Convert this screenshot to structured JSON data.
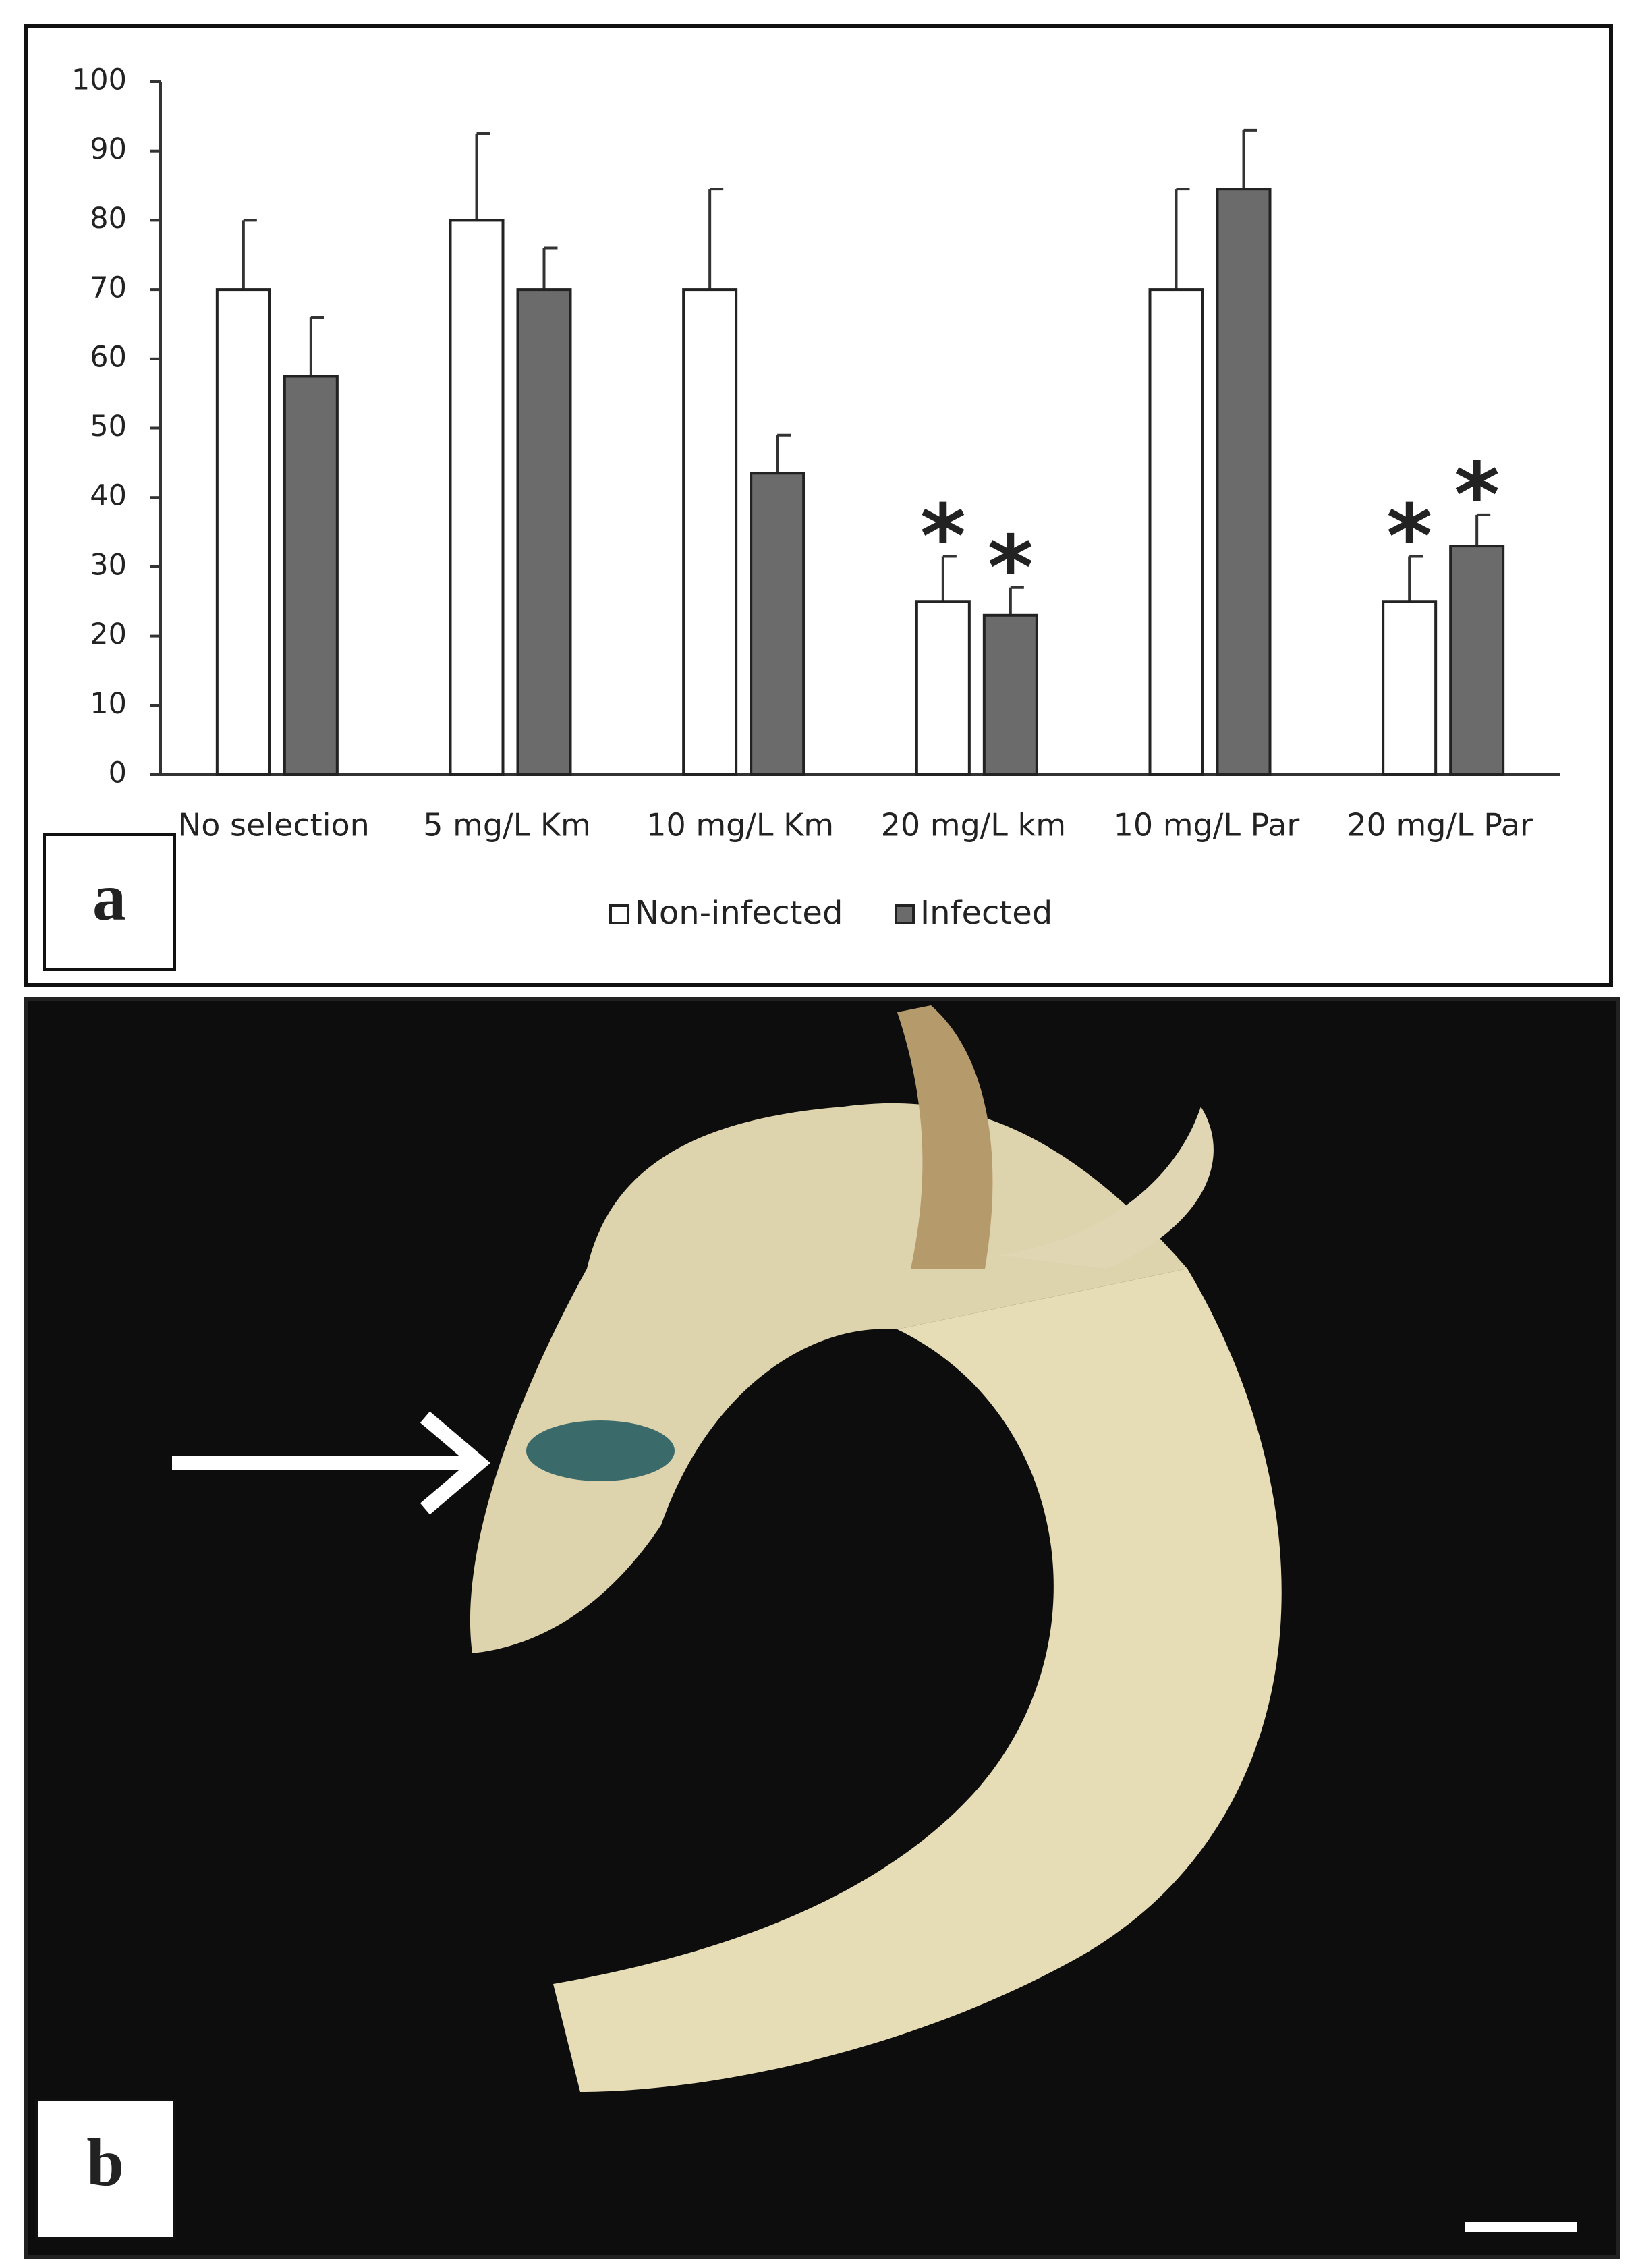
{
  "chart_data": {
    "type": "bar",
    "categories": [
      "No selection",
      "5 mg/L Km",
      "10 mg/L Km",
      "20 mg/L km",
      "10 mg/L Par",
      "20 mg/L Par"
    ],
    "series": [
      {
        "name": "Non-infected",
        "color": "#ffffff",
        "values": [
          70,
          80,
          70,
          25,
          70,
          25
        ],
        "errors": [
          10,
          12.5,
          14.5,
          6.5,
          14.5,
          6.5
        ],
        "labels": [
          null,
          null,
          null,
          "*",
          null,
          "*"
        ]
      },
      {
        "name": "Infected",
        "color": "#6b6b6b",
        "values": [
          57.5,
          70,
          43.5,
          23,
          84.5,
          33
        ],
        "errors": [
          8.5,
          6,
          5.5,
          4,
          8.5,
          4.5
        ],
        "labels": [
          null,
          null,
          null,
          "*",
          null,
          "*"
        ]
      }
    ],
    "ylim": [
      0,
      100
    ],
    "yticks": [
      0,
      10,
      20,
      30,
      40,
      50,
      60,
      70,
      80,
      90,
      100
    ],
    "grid": false
  },
  "panel_labels": [
    "a",
    "b"
  ]
}
